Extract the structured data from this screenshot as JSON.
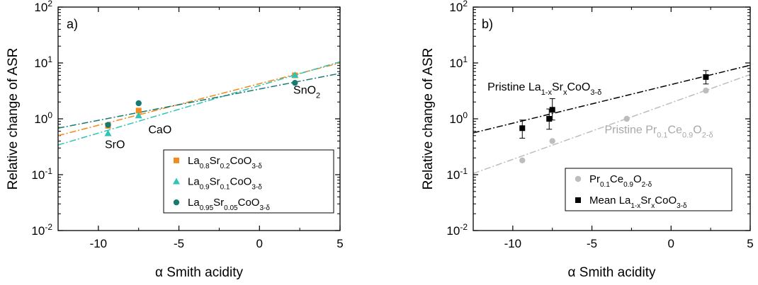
{
  "chart_data": [
    {
      "type": "scatter",
      "panel_label": "a)",
      "xlabel": "α Smith acidity",
      "ylabel": "Relative change of ASR",
      "xlim": [
        -12.5,
        5
      ],
      "ylim": [
        0.01,
        100
      ],
      "yscale": "log",
      "x_ticks": [
        -10,
        -5,
        0,
        5
      ],
      "x_tick_labels": [
        "-10",
        "-5",
        "0",
        "5"
      ],
      "y_ticks": [
        0.01,
        0.1,
        1,
        10,
        100
      ],
      "y_tick_labels": [
        {
          "base": "10",
          "exp": "-2"
        },
        {
          "base": "10",
          "exp": "-1"
        },
        {
          "base": "10",
          "exp": "0"
        },
        {
          "base": "10",
          "exp": "1"
        },
        {
          "base": "10",
          "exp": "2"
        }
      ],
      "legend_position": "bottom-right",
      "series": [
        {
          "legend": [
            {
              "t": "La"
            },
            {
              "t": "0.8",
              "sub": true
            },
            {
              "t": "Sr"
            },
            {
              "t": "0.2",
              "sub": true
            },
            {
              "t": "CoO"
            },
            {
              "t": "3-δ",
              "sub": true
            }
          ],
          "color": "#F28A1E",
          "marker": "square",
          "x": [
            -9.4,
            -7.5,
            2.2
          ],
          "y": [
            0.75,
            1.4,
            6.0
          ],
          "fit": {
            "x": [
              -12.5,
              5
            ],
            "y": [
              0.5,
              10.0
            ]
          }
        },
        {
          "legend": [
            {
              "t": "La"
            },
            {
              "t": "0.9",
              "sub": true
            },
            {
              "t": "Sr"
            },
            {
              "t": "0.1",
              "sub": true
            },
            {
              "t": "CoO"
            },
            {
              "t": "3-δ",
              "sub": true
            }
          ],
          "color": "#2EC4B6",
          "marker": "triangle",
          "x": [
            -9.4,
            -7.5,
            2.2
          ],
          "y": [
            0.55,
            1.15,
            6.1
          ],
          "fit": {
            "x": [
              -12.5,
              5
            ],
            "y": [
              0.34,
              10.5
            ]
          }
        },
        {
          "legend": [
            {
              "t": "La"
            },
            {
              "t": "0.95",
              "sub": true
            },
            {
              "t": "Sr"
            },
            {
              "t": "0.05",
              "sub": true
            },
            {
              "t": "CoO"
            },
            {
              "t": "3-δ",
              "sub": true
            }
          ],
          "color": "#157A70",
          "marker": "circle",
          "x": [
            -9.4,
            -7.5,
            2.2
          ],
          "y": [
            0.78,
            1.9,
            4.4
          ],
          "fit": {
            "x": [
              -12.5,
              5
            ],
            "y": [
              0.68,
              6.5
            ]
          }
        }
      ],
      "annotations": [
        {
          "text": [
            {
              "t": "SrO"
            }
          ],
          "x": -9.6,
          "y": 0.3
        },
        {
          "text": [
            {
              "t": "CaO"
            }
          ],
          "x": -6.9,
          "y": 0.55
        },
        {
          "text": [
            {
              "t": "SnO"
            },
            {
              "t": "2",
              "sub": true
            }
          ],
          "x": 2.1,
          "y": 2.8
        }
      ]
    },
    {
      "type": "scatter",
      "panel_label": "b)",
      "xlabel": "α Smith acidity",
      "ylabel": "Relative change of ASR",
      "xlim": [
        -12.5,
        5
      ],
      "ylim": [
        0.01,
        100
      ],
      "yscale": "log",
      "x_ticks": [
        -10,
        -5,
        0,
        5
      ],
      "x_tick_labels": [
        "-10",
        "-5",
        "0",
        "5"
      ],
      "y_ticks": [
        0.01,
        0.1,
        1,
        10,
        100
      ],
      "y_tick_labels": [
        {
          "base": "10",
          "exp": "-2"
        },
        {
          "base": "10",
          "exp": "-1"
        },
        {
          "base": "10",
          "exp": "0"
        },
        {
          "base": "10",
          "exp": "1"
        },
        {
          "base": "10",
          "exp": "2"
        }
      ],
      "legend_position": "bottom-right",
      "series": [
        {
          "legend": [
            {
              "t": "Pr"
            },
            {
              "t": "0.1",
              "sub": true
            },
            {
              "t": "Ce"
            },
            {
              "t": "0.9",
              "sub": true
            },
            {
              "t": "O"
            },
            {
              "t": "2-δ",
              "sub": true
            }
          ],
          "color": "#BDBDBD",
          "marker": "circle",
          "x": [
            -9.4,
            -7.5,
            -2.8,
            2.2
          ],
          "y": [
            0.18,
            0.4,
            1.0,
            3.2
          ],
          "fit": {
            "x": [
              -12.5,
              5
            ],
            "y": [
              0.105,
              6.2
            ]
          }
        },
        {
          "legend": [
            {
              "t": "Mean La"
            },
            {
              "t": "1-x",
              "sub": true
            },
            {
              "t": "Sr"
            },
            {
              "t": "x",
              "sub": true
            },
            {
              "t": "CoO"
            },
            {
              "t": "3-δ",
              "sub": true
            }
          ],
          "color": "#000000",
          "marker": "square",
          "x": [
            -9.4,
            -7.7,
            -7.5,
            2.2
          ],
          "y": [
            0.68,
            1.0,
            1.45,
            5.6
          ],
          "yerr_low": [
            0.45,
            0.65,
            0.95,
            4.2
          ],
          "yerr_high": [
            0.95,
            1.5,
            2.3,
            7.3
          ],
          "fit": {
            "x": [
              -12.5,
              5
            ],
            "y": [
              0.56,
              9.1
            ]
          }
        }
      ],
      "annotations": [
        {
          "text": [
            {
              "t": "Pristine La"
            },
            {
              "t": "1-x",
              "sub": true
            },
            {
              "t": "Sr"
            },
            {
              "t": "x",
              "sub": true
            },
            {
              "t": "CoO"
            },
            {
              "t": "3-δ",
              "sub": true
            }
          ],
          "x": -11.6,
          "y": 3.2,
          "color": "#000000"
        },
        {
          "text": [
            {
              "t": "Pristine Pr"
            },
            {
              "t": "0.1",
              "sub": true
            },
            {
              "t": "Ce"
            },
            {
              "t": "0.9",
              "sub": true
            },
            {
              "t": "O"
            },
            {
              "t": "2-δ",
              "sub": true
            }
          ],
          "x": -4.2,
          "y": 0.55,
          "color": "#A8A8A8"
        }
      ]
    }
  ]
}
